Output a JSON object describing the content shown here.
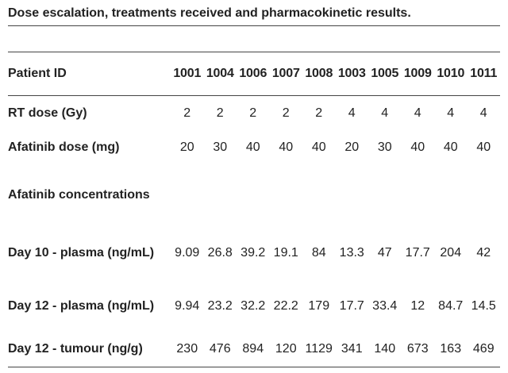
{
  "title": "Dose escalation, treatments received and pharmacokinetic results.",
  "table": {
    "header": [
      "Patient ID",
      "1001",
      "1004",
      "1006",
      "1007",
      "1008",
      "1003",
      "1005",
      "1009",
      "1010",
      "1011"
    ],
    "rows": [
      [
        "RT dose (Gy)",
        2,
        2,
        2,
        2,
        2,
        4,
        4,
        4,
        4,
        4
      ],
      [
        "Afatinib dose (mg)",
        20,
        30,
        40,
        40,
        40,
        20,
        30,
        40,
        40,
        40
      ],
      [
        "Afatinib concentrations"
      ],
      [
        "Day 10 - plasma (ng/mL)",
        9.09,
        26.8,
        39.2,
        19.1,
        84,
        13.3,
        47,
        17.7,
        204,
        42
      ],
      [
        "Day 12 - plasma (ng/mL)",
        9.94,
        23.2,
        32.2,
        22.2,
        179,
        17.7,
        33.4,
        12,
        84.7,
        14.5
      ],
      [
        "Day 12 - tumour (ng/g)",
        230,
        476,
        894,
        120,
        1129,
        341,
        140,
        673,
        163,
        469
      ]
    ]
  }
}
